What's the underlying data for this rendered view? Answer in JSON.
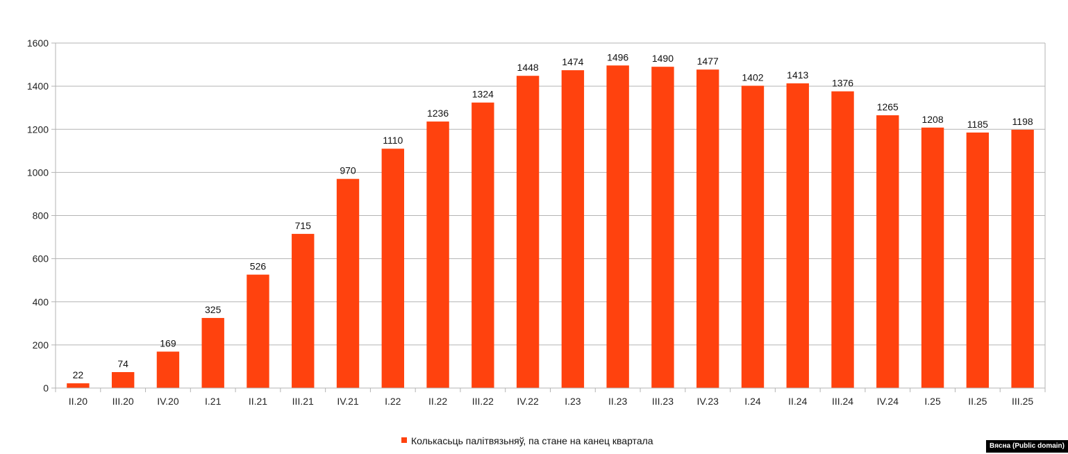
{
  "chart_data": {
    "type": "bar",
    "categories": [
      "II.20",
      "III.20",
      "IV.20",
      "I.21",
      "II.21",
      "III.21",
      "IV.21",
      "I.22",
      "II.22",
      "III.22",
      "IV.22",
      "I.23",
      "II.23",
      "III.23",
      "IV.23",
      "I.24",
      "II.24",
      "III.24",
      "IV.24",
      "I.25",
      "II.25",
      "III.25"
    ],
    "series": [
      {
        "name": "Колькасьць палітвязьняў, па стане на канец квартала",
        "color": "#ff420e",
        "values": [
          22,
          74,
          169,
          325,
          526,
          715,
          970,
          1110,
          1236,
          1324,
          1448,
          1474,
          1496,
          1490,
          1477,
          1402,
          1413,
          1376,
          1265,
          1208,
          1185,
          1198
        ]
      }
    ],
    "ylim": [
      0,
      1600
    ],
    "yticks": [
      0,
      200,
      400,
      600,
      800,
      1000,
      1200,
      1400,
      1600
    ],
    "grid": true,
    "legend_position": "bottom-center",
    "data_labels": true
  },
  "credit": "Вясна (Public domain)"
}
